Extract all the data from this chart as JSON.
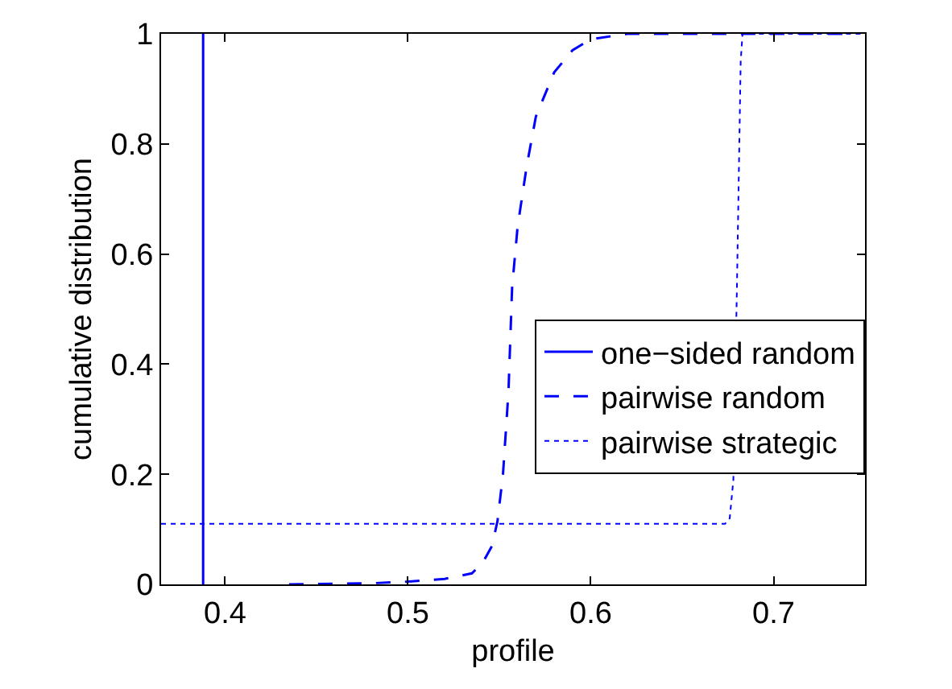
{
  "chart_data": {
    "type": "line",
    "xlabel": "profile",
    "ylabel": "cumulative distribution",
    "xlim": [
      0.365,
      0.75
    ],
    "ylim": [
      0,
      1
    ],
    "xticks": [
      0.4,
      0.5,
      0.6,
      0.7
    ],
    "yticks": [
      0,
      0.2,
      0.4,
      0.6,
      0.8,
      1
    ],
    "grid": false,
    "legend": "right",
    "marker": "none",
    "series": [
      {
        "name": "one−sided random",
        "color": "#0000ff",
        "line_style": "solid",
        "x": [
          0.388,
          0.388
        ],
        "values": [
          0,
          1
        ]
      },
      {
        "name": "pairwise random",
        "color": "#0000ff",
        "line_style": "dashed",
        "x": [
          0.435,
          0.48,
          0.5,
          0.52,
          0.535,
          0.541,
          0.546,
          0.549,
          0.552,
          0.555,
          0.557,
          0.56,
          0.565,
          0.57,
          0.58,
          0.59,
          0.6,
          0.62,
          0.745
        ],
        "values": [
          0,
          0.002,
          0.005,
          0.01,
          0.02,
          0.04,
          0.07,
          0.115,
          0.2,
          0.35,
          0.54,
          0.65,
          0.76,
          0.85,
          0.93,
          0.97,
          0.99,
          1,
          1
        ]
      },
      {
        "name": "pairwise strategic",
        "color": "#0000ff",
        "line_style": "dotted",
        "x": [
          0.365,
          0.6735,
          0.676,
          0.678,
          0.68,
          0.682,
          0.683,
          0.75
        ],
        "values": [
          0.11,
          0.11,
          0.12,
          0.19,
          0.55,
          0.95,
          1,
          1
        ]
      }
    ]
  }
}
